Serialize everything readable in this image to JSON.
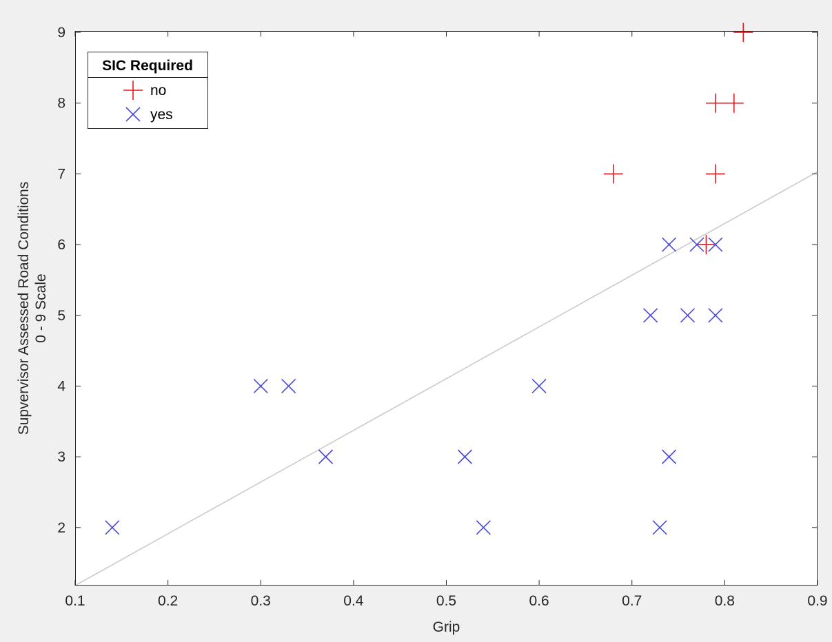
{
  "chart_data": {
    "type": "scatter",
    "xlabel": "Grip",
    "ylabel": [
      "Supvervisor Assessed Road Conditions",
      "0 - 9 Scale"
    ],
    "xlim": [
      0.1,
      0.9
    ],
    "ylim": [
      1.18,
      9.02
    ],
    "xticks": [
      0.1,
      0.2,
      0.3,
      0.4,
      0.5,
      0.6,
      0.7,
      0.8,
      0.9
    ],
    "xtick_labels": [
      "0.1",
      "0.2",
      "0.3",
      "0.4",
      "0.5",
      "0.6",
      "0.7",
      "0.8",
      "0.9"
    ],
    "yticks": [
      2,
      3,
      4,
      5,
      6,
      7,
      8,
      9
    ],
    "ytick_labels": [
      "2",
      "3",
      "4",
      "5",
      "6",
      "7",
      "8",
      "9"
    ],
    "grid": false,
    "legend": {
      "title": "SIC Required",
      "placement": "top-left"
    },
    "series": [
      {
        "name": "no",
        "marker": "plus",
        "color": "#e8161b",
        "points": [
          {
            "x": 0.82,
            "y": 9
          },
          {
            "x": 0.79,
            "y": 8
          },
          {
            "x": 0.81,
            "y": 8
          },
          {
            "x": 0.68,
            "y": 7
          },
          {
            "x": 0.79,
            "y": 7
          },
          {
            "x": 0.78,
            "y": 6
          }
        ]
      },
      {
        "name": "yes",
        "marker": "x",
        "color": "#4a4ad6",
        "points": [
          {
            "x": 0.14,
            "y": 2
          },
          {
            "x": 0.3,
            "y": 4
          },
          {
            "x": 0.33,
            "y": 4
          },
          {
            "x": 0.37,
            "y": 3
          },
          {
            "x": 0.52,
            "y": 3
          },
          {
            "x": 0.54,
            "y": 2
          },
          {
            "x": 0.6,
            "y": 4
          },
          {
            "x": 0.72,
            "y": 5
          },
          {
            "x": 0.73,
            "y": 2
          },
          {
            "x": 0.74,
            "y": 6
          },
          {
            "x": 0.74,
            "y": 3
          },
          {
            "x": 0.76,
            "y": 5
          },
          {
            "x": 0.77,
            "y": 6
          },
          {
            "x": 0.79,
            "y": 6
          },
          {
            "x": 0.79,
            "y": 5
          }
        ]
      }
    ],
    "fit_line": {
      "color": "#c8c8c8",
      "points": [
        {
          "x": 0.1,
          "y": 1.18
        },
        {
          "x": 0.9,
          "y": 7.03
        }
      ]
    }
  }
}
